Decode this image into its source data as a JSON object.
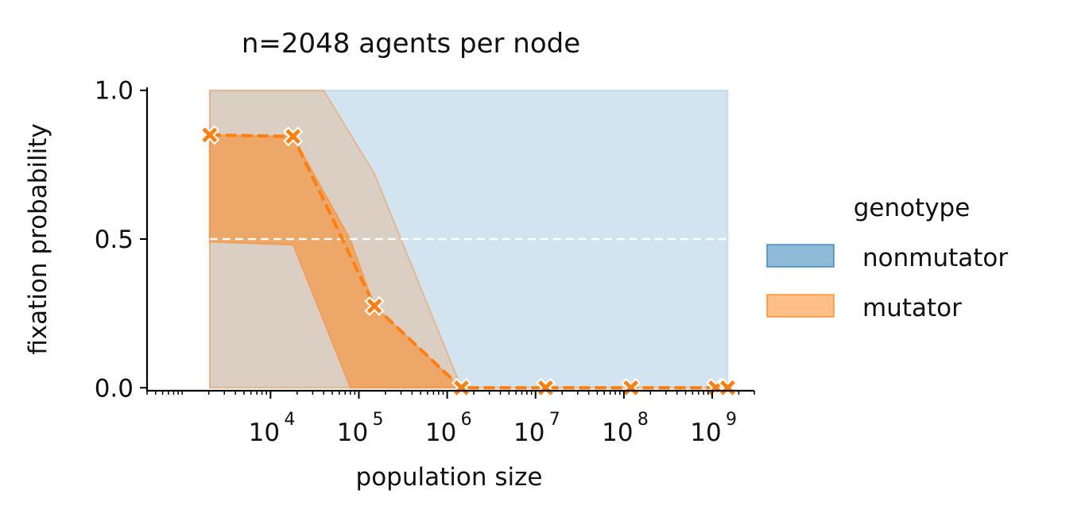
{
  "chart_data": {
    "type": "line",
    "title": "n=2048 agents per node",
    "xlabel": "population size",
    "ylabel": "fixation probability",
    "xscale": "log",
    "xlim": [
      400,
      3000000000
    ],
    "ylim": [
      -0.01,
      1.01
    ],
    "yticks": [
      {
        "value": 0.0,
        "label": "0.0"
      },
      {
        "value": 0.5,
        "label": "0.5"
      },
      {
        "value": 1.0,
        "label": "1.0"
      }
    ],
    "xticks": [
      {
        "value": 10000,
        "base": "10",
        "exp": "4"
      },
      {
        "value": 100000,
        "base": "10",
        "exp": "5"
      },
      {
        "value": 1000000,
        "base": "10",
        "exp": "6"
      },
      {
        "value": 10000000,
        "base": "10",
        "exp": "7"
      },
      {
        "value": 100000000,
        "base": "10",
        "exp": "8"
      },
      {
        "value": 1000000000,
        "base": "10",
        "exp": "9"
      }
    ],
    "reference_line": {
      "y": 0.5,
      "color": "#ffffff",
      "style": "dashed"
    },
    "legend": {
      "title": "genotype",
      "placement": "outside-right",
      "entries": [
        {
          "label": "nonmutator",
          "color": "#1f77b4"
        },
        {
          "label": "mutator",
          "color": "#ff7f0e"
        }
      ]
    },
    "series": [
      {
        "name": "nonmutator",
        "color": "#1f77b4",
        "x": [
          2048,
          1500000000
        ],
        "lower": [
          0,
          0
        ],
        "upper": [
          1,
          1
        ]
      },
      {
        "name": "mutator",
        "color": "#ff7f0e",
        "x": [
          2048,
          18000,
          150000,
          1450000,
          13000000,
          120000000,
          1100000000,
          1500000000
        ],
        "y": [
          0.85,
          0.845,
          0.275,
          0.0,
          0.0,
          0.0,
          0.0,
          0.0
        ],
        "ci_outer_x": [
          2048,
          18000,
          40000,
          150000,
          1450000,
          13000000,
          120000000,
          1100000000,
          1500000000
        ],
        "ci_outer_lower": [
          0.0,
          0.0,
          0.0,
          0.0,
          0.0,
          0.0,
          0.0,
          0.0,
          0.0
        ],
        "ci_outer_upper": [
          1.0,
          1.0,
          1.0,
          0.72,
          0.0,
          0.0,
          0.0,
          0.0,
          0.0
        ],
        "ci_inner_x": [
          2048,
          18000,
          80000,
          150000,
          1450000
        ],
        "ci_inner_lower": [
          0.49,
          0.48,
          0.0,
          0.0,
          0.0
        ],
        "ci_inner_upper": [
          0.85,
          0.845,
          0.5,
          0.275,
          0.0
        ]
      }
    ]
  }
}
